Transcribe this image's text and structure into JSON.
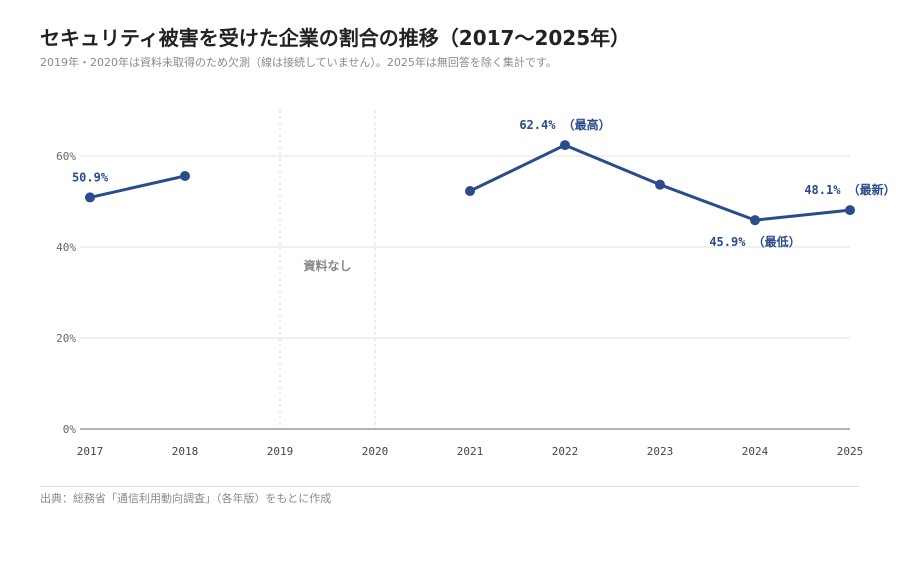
{
  "header": {
    "title": "セキュリティ被害を受けた企業の割合の推移（2017〜2025年）",
    "subtitle": "2019年・2020年は資料未取得のため欠測（線は接続していません）。2025年は無回答を除く集計です。"
  },
  "footer": {
    "source": "出典：総務省「通信利用動向調査」（各年版）をもとに作成"
  },
  "colors": {
    "series": "#2b4c8c",
    "grid": "#e3e3e3",
    "axis": "#999999",
    "tick_text": "#666666",
    "missing_band_line": "#d8d8d8"
  },
  "chart_data": {
    "type": "line",
    "title": "セキュリティ被害を受けた企業の割合の推移（2017〜2025年）",
    "x": [
      "2017",
      "2018",
      "2019",
      "2020",
      "2021",
      "2022",
      "2023",
      "2024",
      "2025"
    ],
    "series": [
      {
        "values": [
          50.9,
          55.6,
          null,
          null,
          52.3,
          62.4,
          53.7,
          45.9,
          48.1
        ]
      }
    ],
    "ylim": [
      0,
      70
    ],
    "yticks": [
      0,
      20,
      40,
      60
    ],
    "ytick_labels": [
      "0%",
      "20%",
      "40%",
      "60%"
    ],
    "grid": true,
    "missing_range": [
      "2019",
      "2020"
    ],
    "missing_label": "資料なし",
    "annotations": [
      {
        "x": "2017",
        "text": "50.9%",
        "position": "above"
      },
      {
        "x": "2022",
        "text": "62.4% （最高）",
        "position": "above"
      },
      {
        "x": "2024",
        "text": "45.9% （最低）",
        "position": "below"
      },
      {
        "x": "2025",
        "text": "48.1% （最新）",
        "position": "above"
      }
    ]
  }
}
